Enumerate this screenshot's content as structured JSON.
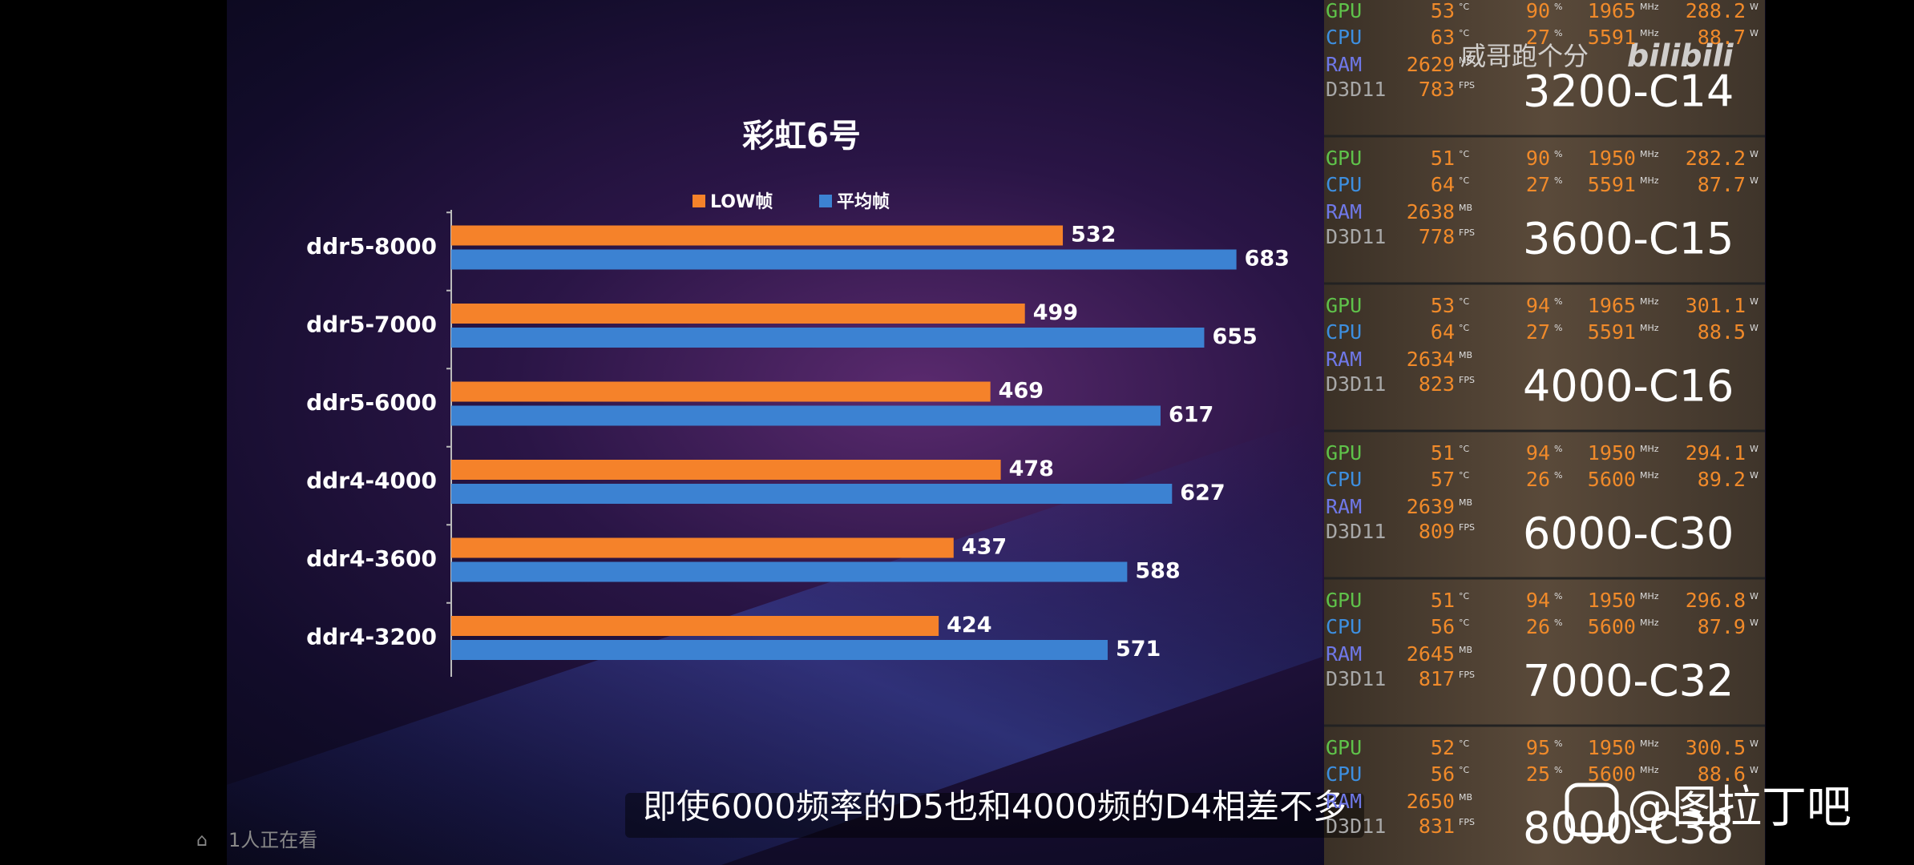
{
  "chart_data": {
    "type": "bar",
    "orientation": "horizontal",
    "title": "彩虹6号",
    "categories": [
      "ddr5-8000",
      "ddr5-7000",
      "ddr5-6000",
      "ddr4-4000",
      "ddr4-3600",
      "ddr4-3200"
    ],
    "series": [
      {
        "name": "LOW帧",
        "color": "#f5822a",
        "values": [
          532,
          499,
          469,
          478,
          437,
          424
        ]
      },
      {
        "name": "平均帧",
        "color": "#3c82d2",
        "values": [
          683,
          655,
          617,
          627,
          588,
          571
        ]
      }
    ],
    "xlim": [
      0,
      700
    ]
  },
  "overlay": {
    "panels": [
      {
        "label": "3200-C14",
        "rows": [
          {
            "name": "GPU",
            "values": [
              53,
              90,
              1965,
              288.2
            ],
            "units": [
              "°C",
              "%",
              "MHz",
              "W"
            ]
          },
          {
            "name": "CPU",
            "values": [
              63,
              27,
              5591,
              88.7
            ],
            "units": [
              "°C",
              "%",
              "MHz",
              "W"
            ]
          },
          {
            "name": "RAM",
            "values": [
              2629
            ],
            "units": [
              "MB"
            ]
          },
          {
            "name": "D3D11",
            "values": [
              783
            ],
            "units": [
              "FPS"
            ]
          }
        ]
      },
      {
        "label": "3600-C15",
        "rows": [
          {
            "name": "GPU",
            "values": [
              51,
              90,
              1950,
              282.2
            ],
            "units": [
              "°C",
              "%",
              "MHz",
              "W"
            ]
          },
          {
            "name": "CPU",
            "values": [
              64,
              27,
              5591,
              87.7
            ],
            "units": [
              "°C",
              "%",
              "MHz",
              "W"
            ]
          },
          {
            "name": "RAM",
            "values": [
              2638
            ],
            "units": [
              "MB"
            ]
          },
          {
            "name": "D3D11",
            "values": [
              778
            ],
            "units": [
              "FPS"
            ]
          }
        ]
      },
      {
        "label": "4000-C16",
        "rows": [
          {
            "name": "GPU",
            "values": [
              53,
              94,
              1965,
              301.1
            ],
            "units": [
              "°C",
              "%",
              "MHz",
              "W"
            ]
          },
          {
            "name": "CPU",
            "values": [
              64,
              27,
              5591,
              88.5
            ],
            "units": [
              "°C",
              "%",
              "MHz",
              "W"
            ]
          },
          {
            "name": "RAM",
            "values": [
              2634
            ],
            "units": [
              "MB"
            ]
          },
          {
            "name": "D3D11",
            "values": [
              823
            ],
            "units": [
              "FPS"
            ]
          }
        ]
      },
      {
        "label": "6000-C30",
        "rows": [
          {
            "name": "GPU",
            "values": [
              51,
              94,
              1950,
              294.1
            ],
            "units": [
              "°C",
              "%",
              "MHz",
              "W"
            ]
          },
          {
            "name": "CPU",
            "values": [
              57,
              26,
              5600,
              89.2
            ],
            "units": [
              "°C",
              "%",
              "MHz",
              "W"
            ]
          },
          {
            "name": "RAM",
            "values": [
              2639
            ],
            "units": [
              "MB"
            ]
          },
          {
            "name": "D3D11",
            "values": [
              809
            ],
            "units": [
              "FPS"
            ]
          }
        ]
      },
      {
        "label": "7000-C32",
        "rows": [
          {
            "name": "GPU",
            "values": [
              51,
              94,
              1950,
              296.8
            ],
            "units": [
              "°C",
              "%",
              "MHz",
              "W"
            ]
          },
          {
            "name": "CPU",
            "values": [
              56,
              26,
              5600,
              87.9
            ],
            "units": [
              "°C",
              "%",
              "MHz",
              "W"
            ]
          },
          {
            "name": "RAM",
            "values": [
              2645
            ],
            "units": [
              "MB"
            ]
          },
          {
            "name": "D3D11",
            "values": [
              817
            ],
            "units": [
              "FPS"
            ]
          }
        ]
      },
      {
        "label": "8000-C38",
        "rows": [
          {
            "name": "GPU",
            "values": [
              52,
              95,
              1950,
              300.5
            ],
            "units": [
              "°C",
              "%",
              "MHz",
              "W"
            ]
          },
          {
            "name": "CPU",
            "values": [
              56,
              25,
              5600,
              88.6
            ],
            "units": [
              "°C",
              "%",
              "MHz",
              "W"
            ]
          },
          {
            "name": "RAM",
            "values": [
              2650
            ],
            "units": [
              "MB"
            ]
          },
          {
            "name": "D3D11",
            "values": [
              831
            ],
            "units": [
              "FPS"
            ]
          }
        ]
      }
    ]
  },
  "uploader_watermark": "威哥跑个分",
  "logo": "bilibili",
  "subtitle": "即使6000频率的D5也和4000频的D4相差不多",
  "viewer_count": "1人正在看",
  "source_watermark": "@图拉丁吧"
}
